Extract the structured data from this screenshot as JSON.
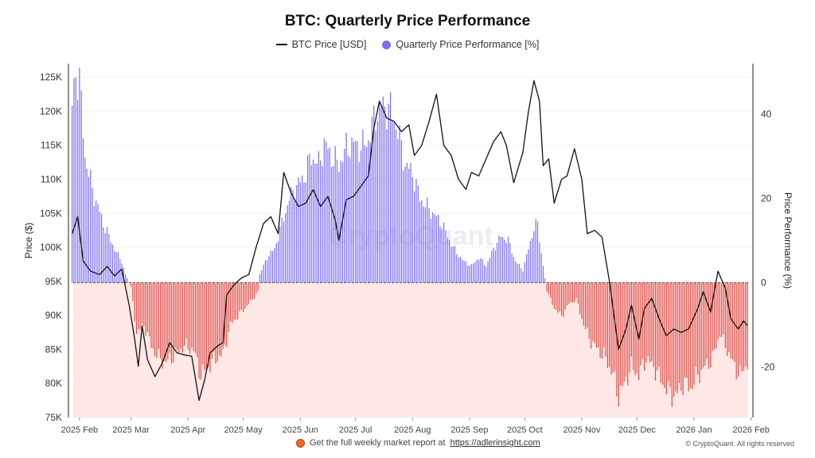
{
  "chart_data": {
    "type": "bar",
    "title": "BTC: Quarterly Price Performance",
    "legend": [
      "BTC Price [USD]",
      "Quarterly Price Performance [%]"
    ],
    "ylabel": "Price ($)",
    "y2label": "Price Performance (%)",
    "ylim": [
      75000,
      127000
    ],
    "y2lim": [
      -32,
      52
    ],
    "y_ticks": [
      "75K",
      "80K",
      "85K",
      "90K",
      "95K",
      "100K",
      "105K",
      "110K",
      "115K",
      "120K",
      "125K"
    ],
    "y2_ticks": [
      "-20",
      "0",
      "20",
      "40"
    ],
    "x_ticks": [
      "2025 Feb",
      "2025 Mar",
      "2025 Apr",
      "2025 May",
      "2025 Jun",
      "2025 Jul",
      "2025 Aug",
      "2025 Sep",
      "2025 Oct",
      "2025 Nov",
      "2025 Dec",
      "2026 Jan",
      "2026 Feb"
    ],
    "x_range": [
      "2025-01-28",
      "2026-02-01"
    ],
    "grid": "horizontal",
    "bar_colors": {
      "positive": "#7b6ff0",
      "negative": "#e0504a",
      "negative_area": "#fde8e6"
    },
    "line_color": "#111111",
    "price_series": [
      [
        "2025-01-28",
        102000
      ],
      [
        "2025-01-31",
        104500
      ],
      [
        "2025-02-03",
        98000
      ],
      [
        "2025-02-07",
        96500
      ],
      [
        "2025-02-12",
        96000
      ],
      [
        "2025-02-16",
        97200
      ],
      [
        "2025-02-20",
        95800
      ],
      [
        "2025-02-24",
        96800
      ],
      [
        "2025-02-28",
        91500
      ],
      [
        "2025-03-03",
        86500
      ],
      [
        "2025-03-05",
        82500
      ],
      [
        "2025-03-07",
        88500
      ],
      [
        "2025-03-10",
        83500
      ],
      [
        "2025-03-14",
        81000
      ],
      [
        "2025-03-18",
        83000
      ],
      [
        "2025-03-22",
        86000
      ],
      [
        "2025-03-26",
        84500
      ],
      [
        "2025-03-30",
        84200
      ],
      [
        "2025-04-03",
        84000
      ],
      [
        "2025-04-07",
        77500
      ],
      [
        "2025-04-10",
        80500
      ],
      [
        "2025-04-13",
        84500
      ],
      [
        "2025-04-17",
        85500
      ],
      [
        "2025-04-20",
        86000
      ],
      [
        "2025-04-22",
        93000
      ],
      [
        "2025-04-26",
        94500
      ],
      [
        "2025-04-30",
        95500
      ],
      [
        "2025-05-04",
        96000
      ],
      [
        "2025-05-08",
        100000
      ],
      [
        "2025-05-12",
        103500
      ],
      [
        "2025-05-16",
        104500
      ],
      [
        "2025-05-20",
        102000
      ],
      [
        "2025-05-23",
        111000
      ],
      [
        "2025-05-27",
        108000
      ],
      [
        "2025-05-31",
        106000
      ],
      [
        "2025-06-04",
        106500
      ],
      [
        "2025-06-08",
        108500
      ],
      [
        "2025-06-12",
        106000
      ],
      [
        "2025-06-16",
        107500
      ],
      [
        "2025-06-20",
        104000
      ],
      [
        "2025-06-22",
        101000
      ],
      [
        "2025-06-26",
        107000
      ],
      [
        "2025-06-30",
        107500
      ],
      [
        "2025-07-04",
        109000
      ],
      [
        "2025-07-08",
        110500
      ],
      [
        "2025-07-11",
        117500
      ],
      [
        "2025-07-14",
        121500
      ],
      [
        "2025-07-18",
        119000
      ],
      [
        "2025-07-22",
        118500
      ],
      [
        "2025-07-26",
        117000
      ],
      [
        "2025-07-30",
        118000
      ],
      [
        "2025-08-02",
        113500
      ],
      [
        "2025-08-06",
        115000
      ],
      [
        "2025-08-10",
        118500
      ],
      [
        "2025-08-14",
        122500
      ],
      [
        "2025-08-18",
        115000
      ],
      [
        "2025-08-22",
        113500
      ],
      [
        "2025-08-26",
        110000
      ],
      [
        "2025-08-30",
        108500
      ],
      [
        "2025-09-02",
        111000
      ],
      [
        "2025-09-06",
        110500
      ],
      [
        "2025-09-10",
        113000
      ],
      [
        "2025-09-14",
        115500
      ],
      [
        "2025-09-18",
        117000
      ],
      [
        "2025-09-21",
        115000
      ],
      [
        "2025-09-25",
        109500
      ],
      [
        "2025-09-30",
        114000
      ],
      [
        "2025-10-03",
        120000
      ],
      [
        "2025-10-06",
        124500
      ],
      [
        "2025-10-09",
        121500
      ],
      [
        "2025-10-11",
        112000
      ],
      [
        "2025-10-14",
        113000
      ],
      [
        "2025-10-17",
        106500
      ],
      [
        "2025-10-21",
        110000
      ],
      [
        "2025-10-24",
        110500
      ],
      [
        "2025-10-28",
        114500
      ],
      [
        "2025-11-01",
        110000
      ],
      [
        "2025-11-04",
        102000
      ],
      [
        "2025-11-08",
        102500
      ],
      [
        "2025-11-12",
        101500
      ],
      [
        "2025-11-16",
        95000
      ],
      [
        "2025-11-21",
        85000
      ],
      [
        "2025-11-25",
        88000
      ],
      [
        "2025-11-28",
        91500
      ],
      [
        "2025-12-02",
        86500
      ],
      [
        "2025-12-05",
        91000
      ],
      [
        "2025-12-09",
        92500
      ],
      [
        "2025-12-13",
        89500
      ],
      [
        "2025-12-17",
        87000
      ],
      [
        "2025-12-21",
        88000
      ],
      [
        "2025-12-25",
        87500
      ],
      [
        "2025-12-29",
        88000
      ],
      [
        "2026-01-03",
        91000
      ],
      [
        "2026-01-06",
        93500
      ],
      [
        "2026-01-10",
        90500
      ],
      [
        "2026-01-14",
        96500
      ],
      [
        "2026-01-18",
        94000
      ],
      [
        "2026-01-21",
        89500
      ],
      [
        "2026-01-25",
        88000
      ],
      [
        "2026-01-28",
        89200
      ],
      [
        "2026-01-30",
        88500
      ]
    ],
    "performance_series": [
      [
        "2025-01-28",
        42
      ],
      [
        "2025-01-30",
        50
      ],
      [
        "2025-02-01",
        48
      ],
      [
        "2025-02-04",
        30
      ],
      [
        "2025-02-08",
        22
      ],
      [
        "2025-02-14",
        14
      ],
      [
        "2025-02-20",
        8
      ],
      [
        "2025-02-24",
        5
      ],
      [
        "2025-02-26",
        2
      ],
      [
        "2025-03-01",
        -1
      ],
      [
        "2025-03-04",
        -12
      ],
      [
        "2025-03-08",
        -10
      ],
      [
        "2025-03-12",
        -15
      ],
      [
        "2025-03-16",
        -18
      ],
      [
        "2025-03-20",
        -19
      ],
      [
        "2025-03-25",
        -17
      ],
      [
        "2025-03-30",
        -15
      ],
      [
        "2025-04-04",
        -16
      ],
      [
        "2025-04-08",
        -22
      ],
      [
        "2025-04-12",
        -20
      ],
      [
        "2025-04-16",
        -18
      ],
      [
        "2025-04-20",
        -17
      ],
      [
        "2025-04-24",
        -10
      ],
      [
        "2025-04-28",
        -8
      ],
      [
        "2025-05-02",
        -6
      ],
      [
        "2025-05-06",
        -4
      ],
      [
        "2025-05-09",
        -2
      ],
      [
        "2025-05-10",
        2
      ],
      [
        "2025-05-14",
        6
      ],
      [
        "2025-05-18",
        8
      ],
      [
        "2025-05-22",
        14
      ],
      [
        "2025-05-26",
        20
      ],
      [
        "2025-05-30",
        23
      ],
      [
        "2025-06-03",
        25
      ],
      [
        "2025-06-07",
        30
      ],
      [
        "2025-06-11",
        28
      ],
      [
        "2025-06-14",
        33
      ],
      [
        "2025-06-18",
        30
      ],
      [
        "2025-06-22",
        28
      ],
      [
        "2025-06-26",
        32
      ],
      [
        "2025-06-30",
        33
      ],
      [
        "2025-07-04",
        32
      ],
      [
        "2025-07-08",
        34
      ],
      [
        "2025-07-12",
        40
      ],
      [
        "2025-07-16",
        42
      ],
      [
        "2025-07-20",
        41
      ],
      [
        "2025-07-24",
        36
      ],
      [
        "2025-07-28",
        28
      ],
      [
        "2025-08-01",
        26
      ],
      [
        "2025-08-05",
        20
      ],
      [
        "2025-08-09",
        18
      ],
      [
        "2025-08-13",
        16
      ],
      [
        "2025-08-17",
        14
      ],
      [
        "2025-08-21",
        10
      ],
      [
        "2025-08-25",
        7
      ],
      [
        "2025-08-29",
        5
      ],
      [
        "2025-09-02",
        4
      ],
      [
        "2025-09-06",
        6
      ],
      [
        "2025-09-10",
        4
      ],
      [
        "2025-09-14",
        8
      ],
      [
        "2025-09-18",
        11
      ],
      [
        "2025-09-22",
        10
      ],
      [
        "2025-09-26",
        5
      ],
      [
        "2025-09-30",
        3
      ],
      [
        "2025-10-03",
        8
      ],
      [
        "2025-10-06",
        13
      ],
      [
        "2025-10-08",
        14
      ],
      [
        "2025-10-10",
        7
      ],
      [
        "2025-10-12",
        1
      ],
      [
        "2025-10-13",
        -2
      ],
      [
        "2025-10-17",
        -6
      ],
      [
        "2025-10-21",
        -8
      ],
      [
        "2025-10-25",
        -5
      ],
      [
        "2025-10-29",
        -4
      ],
      [
        "2025-11-02",
        -10
      ],
      [
        "2025-11-06",
        -14
      ],
      [
        "2025-11-10",
        -16
      ],
      [
        "2025-11-14",
        -18
      ],
      [
        "2025-11-18",
        -22
      ],
      [
        "2025-11-21",
        -27
      ],
      [
        "2025-11-24",
        -24
      ],
      [
        "2025-11-28",
        -20
      ],
      [
        "2025-12-02",
        -22
      ],
      [
        "2025-12-06",
        -18
      ],
      [
        "2025-12-10",
        -20
      ],
      [
        "2025-12-14",
        -23
      ],
      [
        "2025-12-18",
        -26
      ],
      [
        "2025-12-22",
        -27
      ],
      [
        "2025-12-26",
        -24
      ],
      [
        "2025-12-30",
        -25
      ],
      [
        "2026-01-03",
        -22
      ],
      [
        "2026-01-07",
        -20
      ],
      [
        "2026-01-11",
        -18
      ],
      [
        "2026-01-15",
        -12
      ],
      [
        "2026-01-19",
        -16
      ],
      [
        "2026-01-23",
        -20
      ],
      [
        "2026-01-26",
        -22
      ],
      [
        "2026-01-30",
        -19
      ]
    ]
  },
  "footer": {
    "text": "Get the full weekly market report at",
    "link": "https://adlerinsight.com",
    "copyright": "© CryptoQuant. All rights reserved"
  },
  "watermark": "CryptoQuant"
}
